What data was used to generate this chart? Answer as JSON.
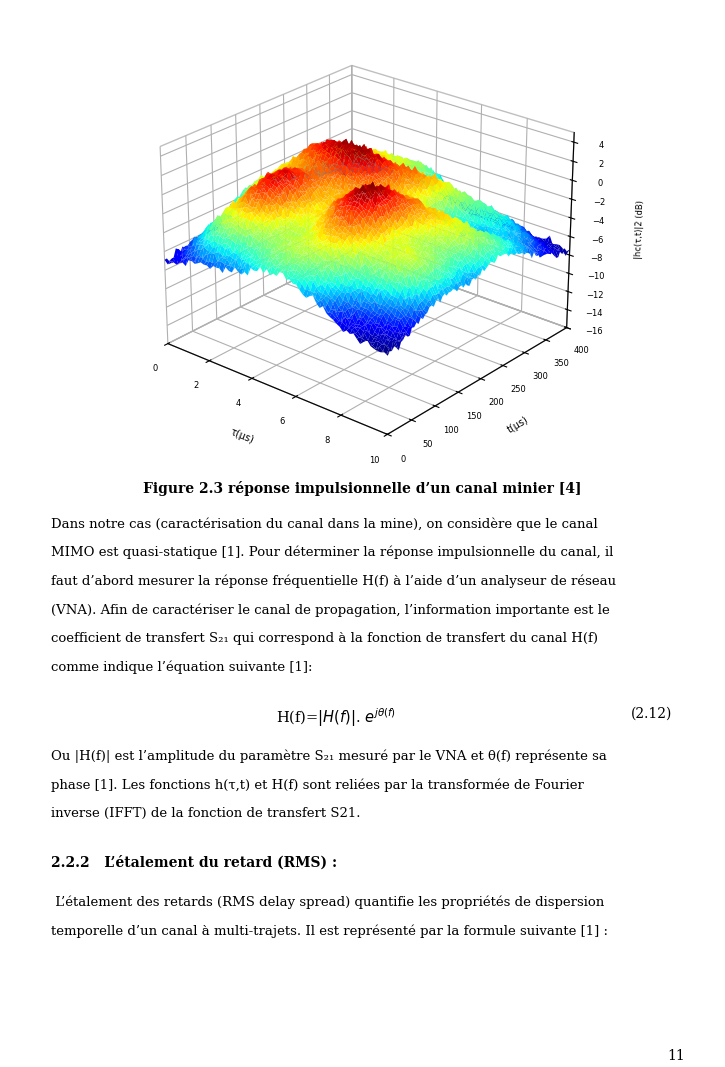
{
  "figure_caption": "Figure 2.3 réponse impulsionnelle d’un canal minier [4]",
  "xlabel_3d": "τ(μs)",
  "ylabel_3d": "t(μs)",
  "zlabel_3d": "|hc(τ,t)|2 (dB)",
  "paragraph1_line1": "Dans notre cas (caractérisation du canal dans la mine), on considère que le canal",
  "paragraph1_line2": "MIMO est quasi-statique [1]. Pour déterminer la réponse impulsionnelle du canal, il",
  "paragraph1_line3": "faut d’abord mesurer la réponse fréquentielle H(f) à l’aide d’un analyseur de réseau",
  "paragraph1_line4": "(VNA). Afin de caractériser le canal de propagation, l’information importante est le",
  "paragraph1_line5": "coefficient de transfert S₂₁ qui correspond à la fonction de transfert du canal H(f)",
  "paragraph1_line6": "comme indique l’équation suivante [1]:",
  "equation_label": "(2.12)",
  "paragraph2_line1": "Ou |H(f)| est l’amplitude du paramètre S₂₁ mesuré par le VNA et θ(f) représente sa",
  "paragraph2_line2": "phase [1]. Les fonctions h(τ,t) et H(f) sont reliées par la transformée de Fourier",
  "paragraph2_line3": "inverse (IFFT) de la fonction de transfert S21.",
  "section_title": "2.2.2   L’étalement du retard (RMS) :",
  "paragraph3_line1": " L’étalement des retards (RMS delay spread) quantifie les propriétés de dispersion",
  "paragraph3_line2": "temporelle d’un canal à multi-trajets. Il est représenté par la formule suivante [1] :",
  "page_number": "11",
  "background": "#ffffff",
  "text_color": "#000000"
}
